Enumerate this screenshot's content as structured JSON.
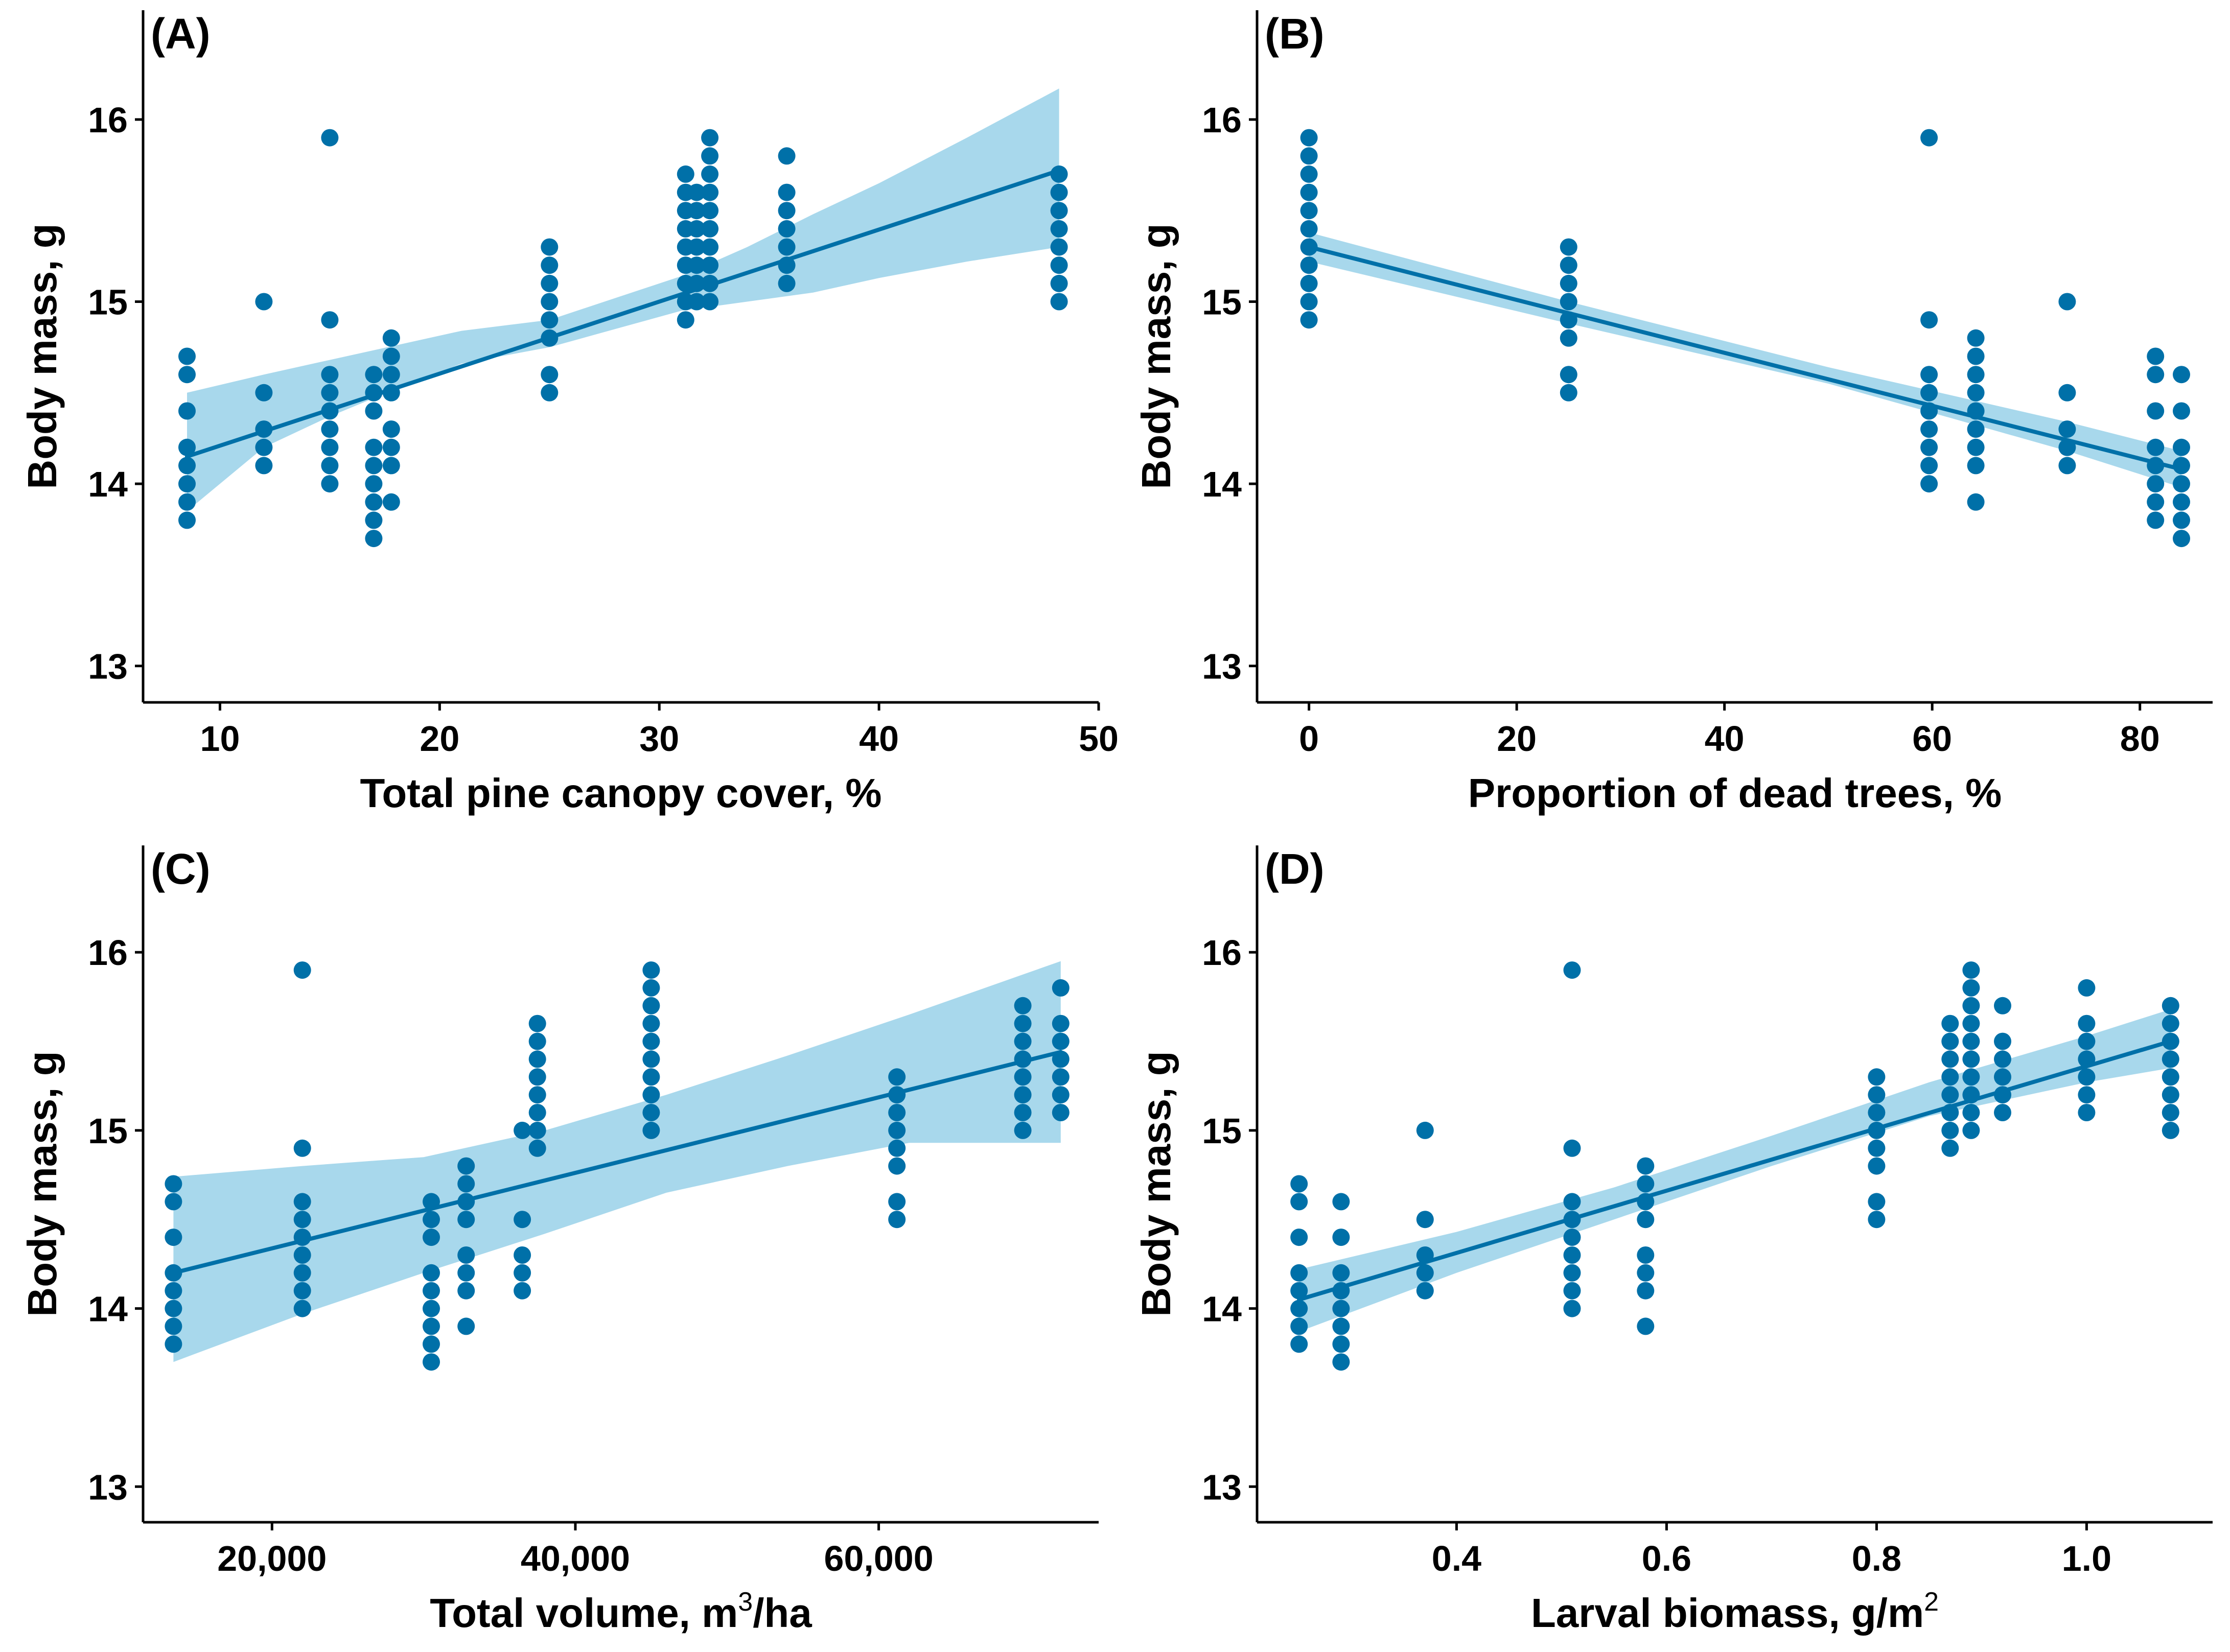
{
  "figure": {
    "point_color": "#0070A8",
    "line_color": "#0070A8",
    "band_color": "#A8D8EC"
  },
  "chart_data": [
    {
      "type": "scatter",
      "panel": "(A)",
      "xlabel": "Total pine canopy cover, %",
      "ylabel": "Body mass, g",
      "xlim": [
        6.5,
        50
      ],
      "ylim": [
        12.8,
        16.6
      ],
      "xticks": [
        10,
        20,
        30,
        40,
        50
      ],
      "xtick_labels": [
        "10",
        "20",
        "30",
        "40",
        "50"
      ],
      "yticks": [
        13,
        14,
        15,
        16
      ],
      "ytick_labels": [
        "13",
        "14",
        "15",
        "16"
      ],
      "fit": {
        "x": [
          8.5,
          48.2
        ],
        "y": [
          14.15,
          15.72
        ]
      },
      "band": {
        "x": [
          8.5,
          12,
          15,
          18,
          21,
          25,
          28,
          31,
          34,
          37,
          40,
          44,
          48.2
        ],
        "lower": [
          13.85,
          14.2,
          14.37,
          14.52,
          14.66,
          14.75,
          14.85,
          14.95,
          15.0,
          15.05,
          15.13,
          15.22,
          15.3
        ],
        "upper": [
          14.5,
          14.6,
          14.68,
          14.76,
          14.84,
          14.9,
          15.02,
          15.14,
          15.3,
          15.48,
          15.65,
          15.9,
          16.17
        ]
      },
      "points": [
        {
          "x": 8.5,
          "y": [
            13.8,
            13.9,
            14.0,
            14.1,
            14.2,
            14.4,
            14.6,
            14.7
          ]
        },
        {
          "x": 12.0,
          "y": [
            14.1,
            14.2,
            14.3,
            14.5,
            15.0
          ]
        },
        {
          "x": 15.0,
          "y": [
            14.0,
            14.1,
            14.2,
            14.3,
            14.4,
            14.5,
            14.6,
            14.9,
            15.9
          ]
        },
        {
          "x": 17.0,
          "y": [
            13.7,
            13.8,
            13.9,
            14.0,
            14.1,
            14.2,
            14.4,
            14.5,
            14.6
          ]
        },
        {
          "x": 17.8,
          "y": [
            13.9,
            14.1,
            14.2,
            14.3,
            14.5,
            14.6,
            14.7,
            14.8
          ]
        },
        {
          "x": 25.0,
          "y": [
            14.5,
            14.6,
            14.8,
            14.9,
            15.0,
            15.1,
            15.2,
            15.3
          ]
        },
        {
          "x": 31.2,
          "y": [
            14.9,
            15.0,
            15.1,
            15.2,
            15.3,
            15.4,
            15.5,
            15.6,
            15.7
          ]
        },
        {
          "x": 31.7,
          "y": [
            15.0,
            15.1,
            15.2,
            15.3,
            15.4,
            15.5,
            15.6
          ]
        },
        {
          "x": 32.3,
          "y": [
            15.0,
            15.1,
            15.2,
            15.3,
            15.4,
            15.5,
            15.6,
            15.7,
            15.8,
            15.9
          ]
        },
        {
          "x": 35.8,
          "y": [
            15.1,
            15.2,
            15.3,
            15.4,
            15.5,
            15.6,
            15.8
          ]
        },
        {
          "x": 48.2,
          "y": [
            15.0,
            15.1,
            15.2,
            15.3,
            15.4,
            15.5,
            15.6,
            15.7
          ]
        }
      ]
    },
    {
      "type": "scatter",
      "panel": "(B)",
      "xlabel": "Proportion of dead trees, %",
      "ylabel": "Body mass, g",
      "xlim": [
        -5,
        87
      ],
      "ylim": [
        12.8,
        16.6
      ],
      "xticks": [
        0,
        20,
        40,
        60,
        80
      ],
      "xtick_labels": [
        "0",
        "20",
        "40",
        "60",
        "80"
      ],
      "yticks": [
        13,
        14,
        15,
        16
      ],
      "ytick_labels": [
        "13",
        "14",
        "15",
        "16"
      ],
      "fit": {
        "x": [
          0,
          84
        ],
        "y": [
          15.3,
          14.08
        ]
      },
      "band": {
        "x": [
          0,
          25,
          50,
          60,
          73,
          84
        ],
        "lower": [
          15.22,
          14.88,
          14.55,
          14.39,
          14.18,
          13.98
        ],
        "upper": [
          15.38,
          15.0,
          14.64,
          14.51,
          14.34,
          14.18
        ]
      },
      "points": [
        {
          "x": 0,
          "y": [
            14.9,
            15.0,
            15.1,
            15.2,
            15.3,
            15.4,
            15.5,
            15.6,
            15.7,
            15.8,
            15.9
          ]
        },
        {
          "x": 25,
          "y": [
            14.5,
            14.6,
            14.8,
            14.9,
            15.0,
            15.1,
            15.2,
            15.3
          ]
        },
        {
          "x": 59.7,
          "y": [
            14.0,
            14.1,
            14.2,
            14.3,
            14.4,
            14.5,
            14.6,
            14.9,
            15.9
          ]
        },
        {
          "x": 64.2,
          "y": [
            13.9,
            14.1,
            14.2,
            14.3,
            14.4,
            14.5,
            14.6,
            14.7,
            14.8
          ]
        },
        {
          "x": 73.0,
          "y": [
            14.1,
            14.2,
            14.3,
            14.5,
            15.0
          ]
        },
        {
          "x": 81.5,
          "y": [
            13.8,
            13.9,
            14.0,
            14.1,
            14.2,
            14.4,
            14.6,
            14.7
          ]
        },
        {
          "x": 84.0,
          "y": [
            13.7,
            13.8,
            13.9,
            14.0,
            14.1,
            14.2,
            14.4,
            14.6
          ]
        }
      ]
    },
    {
      "type": "scatter",
      "panel": "(C)",
      "xlabel": "Total volume, m",
      "xlabel_sup": "3",
      "xlabel_suffix": "/ha",
      "ylabel": "Body mass, g",
      "xlim": [
        11500,
        74500
      ],
      "ylim": [
        12.8,
        16.6
      ],
      "xticks": [
        20000,
        40000,
        60000
      ],
      "xtick_labels": [
        "20,000",
        "40,000",
        "60,000"
      ],
      "yticks": [
        13,
        14,
        15,
        16
      ],
      "ytick_labels": [
        "13",
        "14",
        "15",
        "16"
      ],
      "fit": {
        "x": [
          13500,
          72000
        ],
        "y": [
          14.2,
          15.44
        ]
      },
      "band": {
        "x": [
          13500,
          22000,
          30000,
          38000,
          46000,
          54000,
          62000,
          72000
        ],
        "lower": [
          13.7,
          13.97,
          14.2,
          14.42,
          14.65,
          14.8,
          14.93,
          14.93
        ],
        "upper": [
          14.74,
          14.8,
          14.85,
          15.0,
          15.2,
          15.42,
          15.65,
          15.95
        ]
      },
      "points": [
        {
          "x": 13500,
          "y": [
            13.8,
            13.9,
            14.0,
            14.1,
            14.2,
            14.4,
            14.6,
            14.7
          ]
        },
        {
          "x": 22000,
          "y": [
            14.0,
            14.1,
            14.2,
            14.3,
            14.4,
            14.5,
            14.6,
            14.9,
            15.9
          ]
        },
        {
          "x": 30500,
          "y": [
            13.7,
            13.8,
            13.9,
            14.0,
            14.1,
            14.2,
            14.4,
            14.5,
            14.6
          ]
        },
        {
          "x": 32800,
          "y": [
            13.9,
            14.1,
            14.2,
            14.3,
            14.5,
            14.6,
            14.7,
            14.8
          ]
        },
        {
          "x": 36500,
          "y": [
            14.1,
            14.2,
            14.3,
            14.5,
            15.0
          ]
        },
        {
          "x": 37500,
          "y": [
            14.9,
            15.0,
            15.1,
            15.2,
            15.3,
            15.4,
            15.5,
            15.6
          ]
        },
        {
          "x": 45000,
          "y": [
            15.0,
            15.1,
            15.2,
            15.3,
            15.4,
            15.5,
            15.6,
            15.7,
            15.8,
            15.9
          ]
        },
        {
          "x": 61200,
          "y": [
            14.5,
            14.6,
            14.8,
            14.9,
            15.0,
            15.1,
            15.2,
            15.3
          ]
        },
        {
          "x": 69500,
          "y": [
            15.0,
            15.1,
            15.2,
            15.3,
            15.4,
            15.5,
            15.6,
            15.7
          ]
        },
        {
          "x": 72000,
          "y": [
            15.1,
            15.2,
            15.3,
            15.4,
            15.5,
            15.6,
            15.8
          ]
        }
      ]
    },
    {
      "type": "scatter",
      "panel": "(D)",
      "xlabel": "Larval biomass, g/m",
      "xlabel_sup": "2",
      "xlabel_suffix": "",
      "ylabel": "Body mass, g",
      "xlim": [
        0.21,
        1.12
      ],
      "ylim": [
        12.8,
        16.6
      ],
      "xticks": [
        0.4,
        0.6,
        0.8,
        1.0
      ],
      "xtick_labels": [
        "0.4",
        "0.6",
        "0.8",
        "1.0"
      ],
      "yticks": [
        13,
        14,
        15,
        16
      ],
      "ytick_labels": [
        "13",
        "14",
        "15",
        "16"
      ],
      "fit": {
        "x": [
          0.25,
          1.08
        ],
        "y": [
          14.05,
          15.5
        ]
      },
      "band": {
        "x": [
          0.25,
          0.4,
          0.55,
          0.7,
          0.85,
          1.0,
          1.08
        ],
        "lower": [
          13.87,
          14.2,
          14.5,
          14.8,
          15.08,
          15.27,
          15.35
        ],
        "upper": [
          14.22,
          14.43,
          14.68,
          14.97,
          15.27,
          15.53,
          15.68
        ]
      },
      "points": [
        {
          "x": 0.25,
          "y": [
            13.8,
            13.9,
            14.0,
            14.1,
            14.2,
            14.4,
            14.6,
            14.7
          ]
        },
        {
          "x": 0.29,
          "y": [
            13.7,
            13.8,
            13.9,
            14.0,
            14.1,
            14.2,
            14.4,
            14.6
          ]
        },
        {
          "x": 0.37,
          "y": [
            14.1,
            14.2,
            14.3,
            14.5,
            15.0
          ]
        },
        {
          "x": 0.51,
          "y": [
            14.0,
            14.1,
            14.2,
            14.3,
            14.4,
            14.5,
            14.6,
            14.9,
            15.9
          ]
        },
        {
          "x": 0.58,
          "y": [
            13.9,
            14.1,
            14.2,
            14.3,
            14.5,
            14.6,
            14.7,
            14.8
          ]
        },
        {
          "x": 0.8,
          "y": [
            14.5,
            14.6,
            14.8,
            14.9,
            15.0,
            15.1,
            15.2,
            15.3
          ]
        },
        {
          "x": 0.87,
          "y": [
            14.9,
            15.0,
            15.1,
            15.2,
            15.3,
            15.4,
            15.5,
            15.6
          ]
        },
        {
          "x": 0.89,
          "y": [
            15.0,
            15.1,
            15.2,
            15.3,
            15.4,
            15.5,
            15.6,
            15.7,
            15.8,
            15.9
          ]
        },
        {
          "x": 0.92,
          "y": [
            15.1,
            15.2,
            15.3,
            15.4,
            15.5,
            15.7
          ]
        },
        {
          "x": 1.0,
          "y": [
            15.1,
            15.2,
            15.3,
            15.4,
            15.5,
            15.6,
            15.8
          ]
        },
        {
          "x": 1.08,
          "y": [
            15.0,
            15.1,
            15.2,
            15.3,
            15.4,
            15.5,
            15.6,
            15.7
          ]
        }
      ]
    }
  ]
}
